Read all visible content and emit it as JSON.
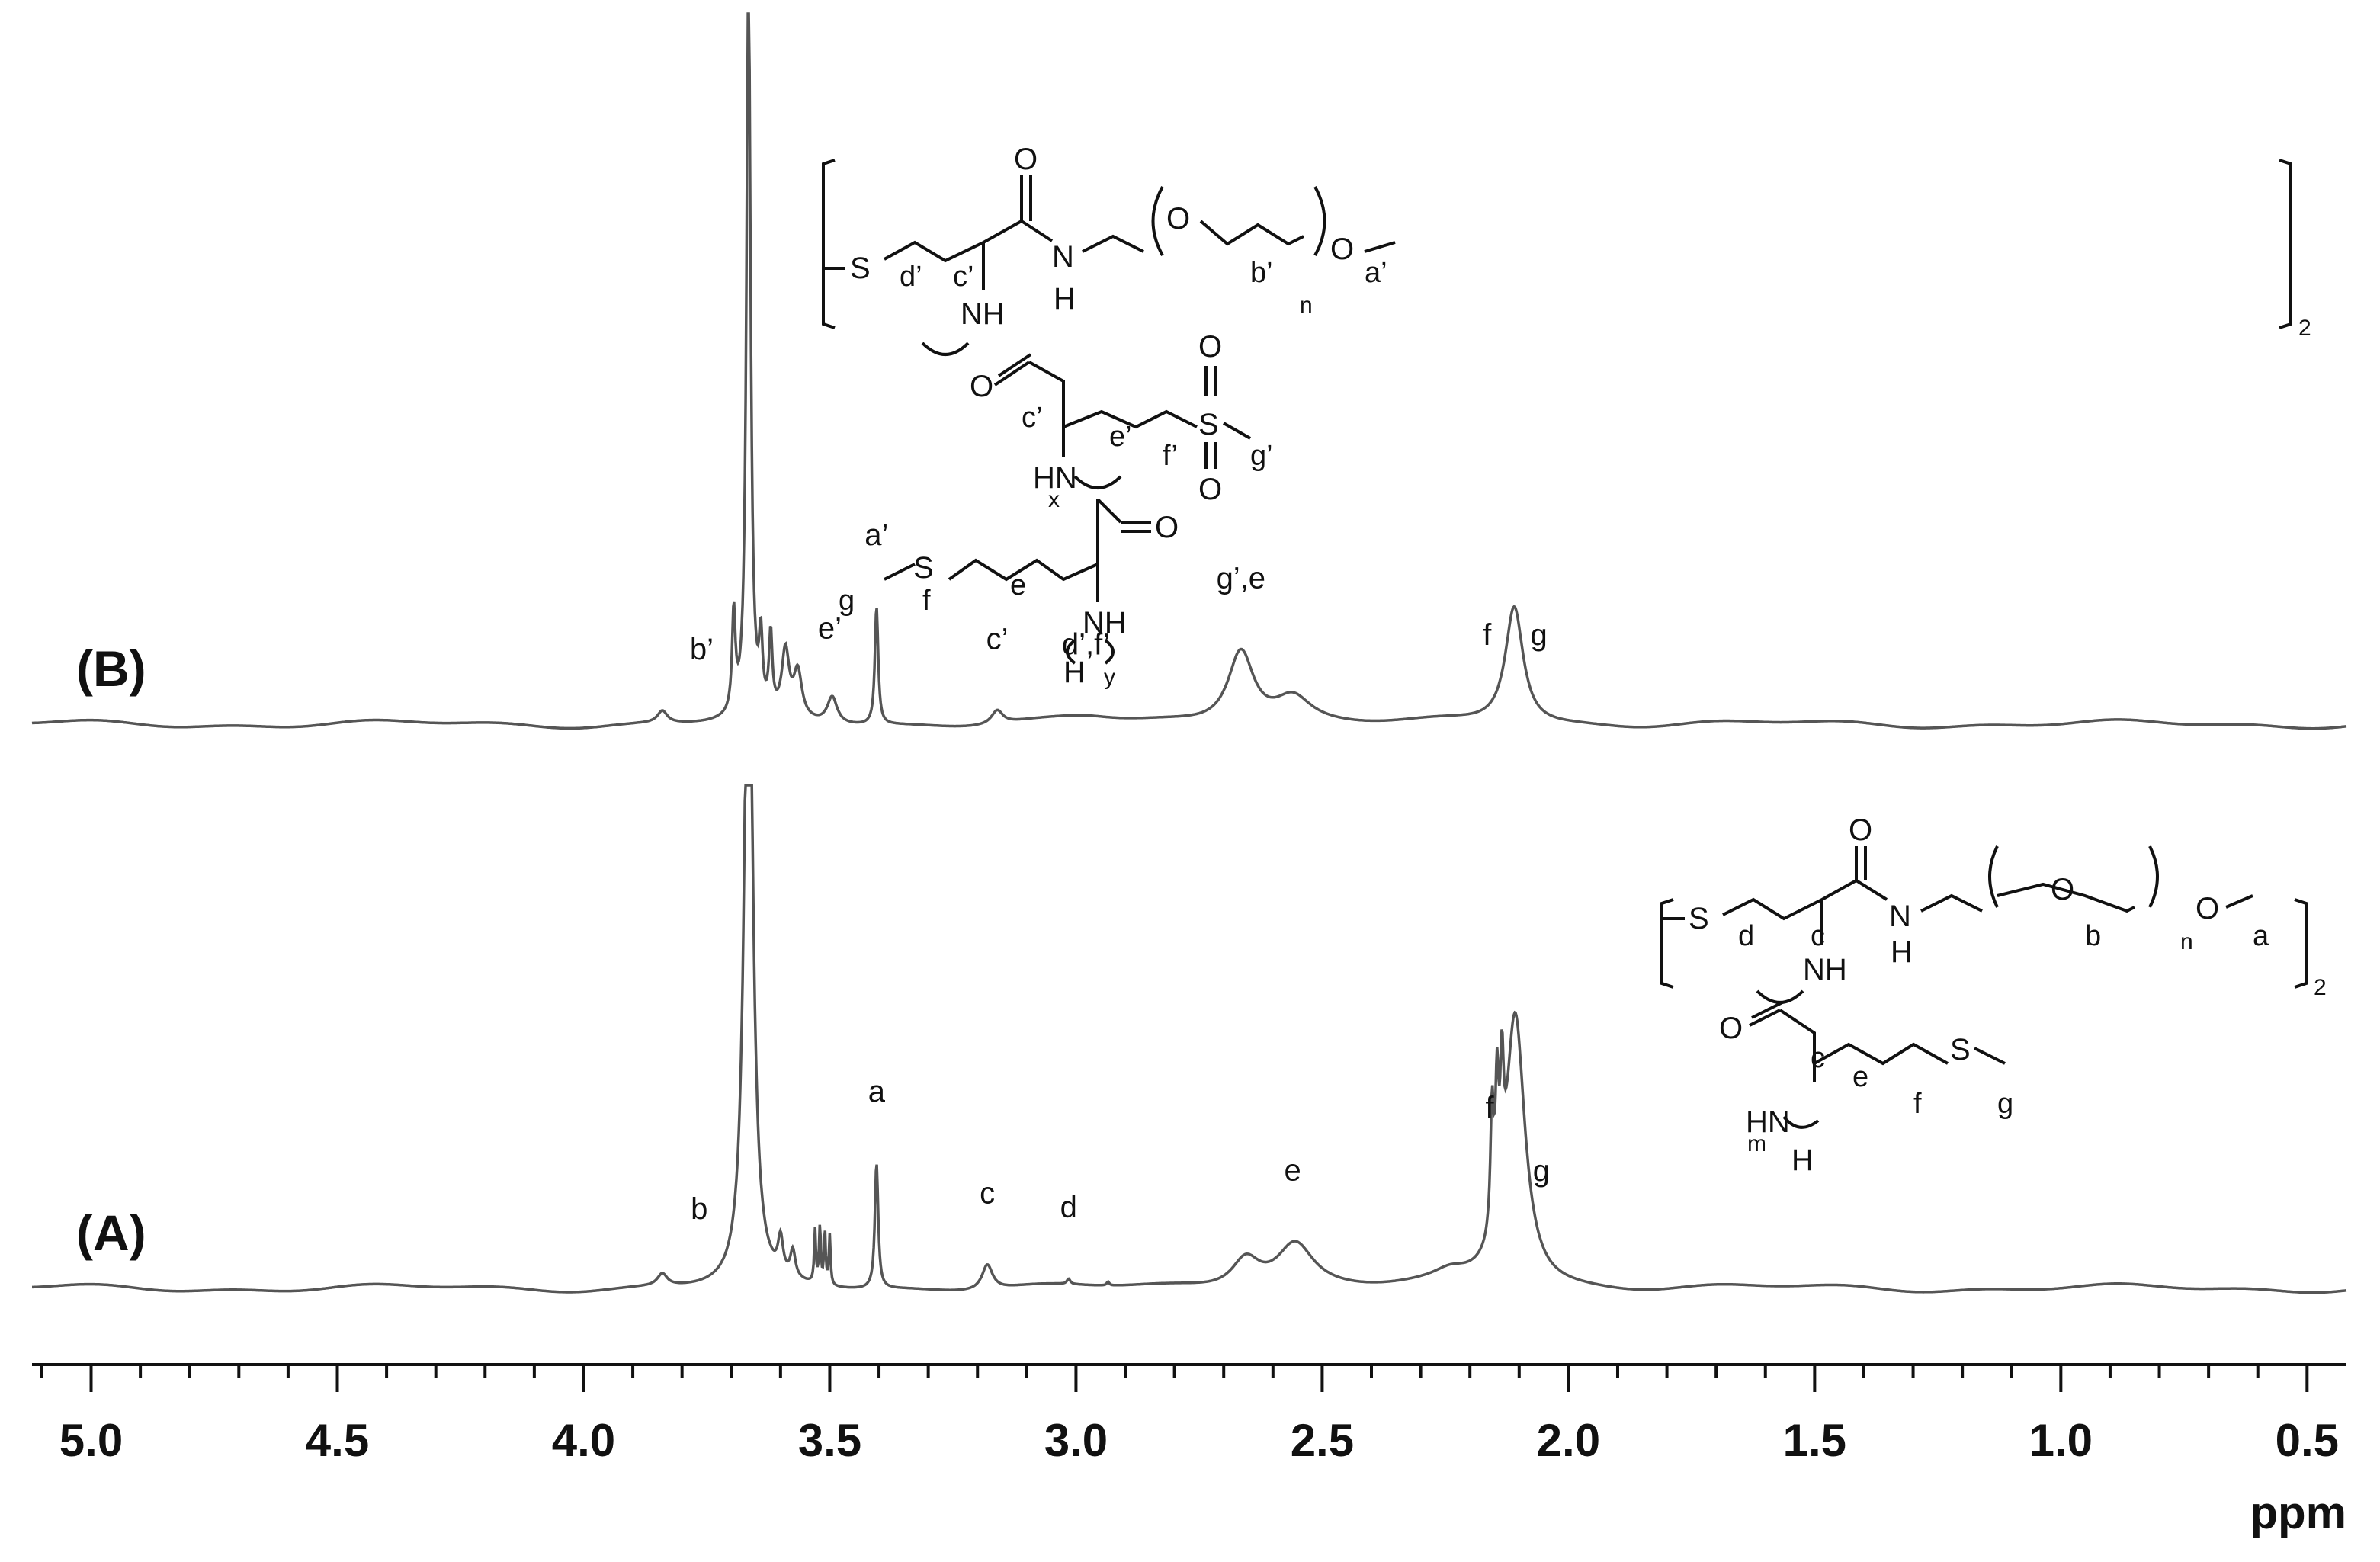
{
  "chart_data": {
    "type": "line",
    "title": "",
    "xlabel": "ppm",
    "ylabel": "",
    "x_reversed": true,
    "xlim": [
      5.12,
      0.42
    ],
    "xticks": [
      5.0,
      4.5,
      4.0,
      3.5,
      3.0,
      2.5,
      2.0,
      1.5,
      1.0,
      0.5
    ],
    "xtick_labels": [
      "5.0",
      "4.5",
      "4.0",
      "3.5",
      "3.0",
      "2.5",
      "2.0",
      "1.5",
      "1.0",
      "0.5"
    ],
    "minor_tick_step": 0.1,
    "grid": false,
    "legend": "none",
    "series": [
      {
        "name": "(B)",
        "peaks": [
          {
            "ppm": 3.84,
            "height": 0.016,
            "width": 0.012
          },
          {
            "ppm": 3.695,
            "height": 0.13,
            "width": 0.004
          },
          {
            "ppm": 3.665,
            "height": 0.98,
            "width": 0.005
          },
          {
            "ppm": 3.64,
            "height": 0.09,
            "width": 0.004
          },
          {
            "ppm": 3.62,
            "height": 0.1,
            "width": 0.004
          },
          {
            "ppm": 3.59,
            "height": 0.085,
            "width": 0.009
          },
          {
            "ppm": 3.565,
            "height": 0.06,
            "width": 0.01
          },
          {
            "ppm": 3.495,
            "height": 0.035,
            "width": 0.012
          },
          {
            "ppm": 3.405,
            "height": 0.155,
            "width": 0.004
          },
          {
            "ppm": 3.16,
            "height": 0.018,
            "width": 0.014
          },
          {
            "ppm": 2.98,
            "height": 0.007,
            "width": 0.08
          },
          {
            "ppm": 2.665,
            "height": 0.098,
            "width": 0.032
          },
          {
            "ppm": 2.56,
            "height": 0.035,
            "width": 0.045
          },
          {
            "ppm": 2.11,
            "height": 0.155,
            "width": 0.022
          }
        ],
        "labels": [
          {
            "text": "b’",
            "ppm": 3.76
          },
          {
            "text": "a’",
            "ppm": 3.405
          },
          {
            "text": "e’",
            "ppm": 3.5
          },
          {
            "text": "c’",
            "ppm": 3.16
          },
          {
            "text": "d’,f’",
            "ppm": 2.98
          },
          {
            "text": "g’,e",
            "ppm": 2.665
          },
          {
            "text": "f",
            "ppm": 2.165
          },
          {
            "text": "g",
            "ppm": 2.06
          }
        ]
      },
      {
        "name": "(A)",
        "peaks": [
          {
            "ppm": 3.84,
            "height": 0.016,
            "width": 0.012
          },
          {
            "ppm": 3.665,
            "height": 0.98,
            "width": 0.01
          },
          {
            "ppm": 3.6,
            "height": 0.045,
            "width": 0.006
          },
          {
            "ppm": 3.575,
            "height": 0.035,
            "width": 0.006
          },
          {
            "ppm": 3.53,
            "height": 0.07,
            "width": 0.002
          },
          {
            "ppm": 3.52,
            "height": 0.075,
            "width": 0.002
          },
          {
            "ppm": 3.51,
            "height": 0.07,
            "width": 0.002
          },
          {
            "ppm": 3.5,
            "height": 0.065,
            "width": 0.002
          },
          {
            "ppm": 3.405,
            "height": 0.165,
            "width": 0.004
          },
          {
            "ppm": 3.18,
            "height": 0.033,
            "width": 0.013
          },
          {
            "ppm": 3.015,
            "height": 0.007,
            "width": 0.004
          },
          {
            "ppm": 2.935,
            "height": 0.005,
            "width": 0.003
          },
          {
            "ppm": 2.655,
            "height": 0.04,
            "width": 0.035
          },
          {
            "ppm": 2.555,
            "height": 0.058,
            "width": 0.045
          },
          {
            "ppm": 2.24,
            "height": 0.012,
            "width": 0.04
          },
          {
            "ppm": 2.155,
            "height": 0.16,
            "width": 0.004
          },
          {
            "ppm": 2.145,
            "height": 0.165,
            "width": 0.004
          },
          {
            "ppm": 2.135,
            "height": 0.155,
            "width": 0.004
          },
          {
            "ppm": 2.108,
            "height": 0.355,
            "width": 0.024
          }
        ],
        "labels": [
          {
            "text": "b",
            "ppm": 3.765
          },
          {
            "text": "a",
            "ppm": 3.405
          },
          {
            "text": "c",
            "ppm": 3.18
          },
          {
            "text": "d",
            "ppm": 3.015
          },
          {
            "text": "e",
            "ppm": 2.56
          },
          {
            "text": "f",
            "ppm": 2.16
          },
          {
            "text": "g",
            "ppm": 2.055
          }
        ]
      }
    ]
  },
  "structure_b": {
    "atoms": [
      "S",
      "O",
      "N",
      "H",
      "NH",
      "O",
      "O",
      "O",
      "S",
      "O",
      "O",
      "HN",
      "O",
      "S",
      "NH",
      "H"
    ],
    "letters": [
      "d’",
      "c’",
      "b’",
      "a’",
      "c’",
      "e’",
      "f’",
      "g’",
      "g",
      "f",
      "e"
    ],
    "subscripts": [
      "n",
      "2",
      "x",
      "y"
    ]
  },
  "structure_a": {
    "atoms": [
      "S",
      "O",
      "N",
      "H",
      "NH",
      "O",
      "O",
      "O",
      "S",
      "HN",
      "H"
    ],
    "letters": [
      "d",
      "c",
      "b",
      "a",
      "c",
      "e",
      "f",
      "g"
    ],
    "subscripts": [
      "n",
      "2",
      "m"
    ]
  }
}
